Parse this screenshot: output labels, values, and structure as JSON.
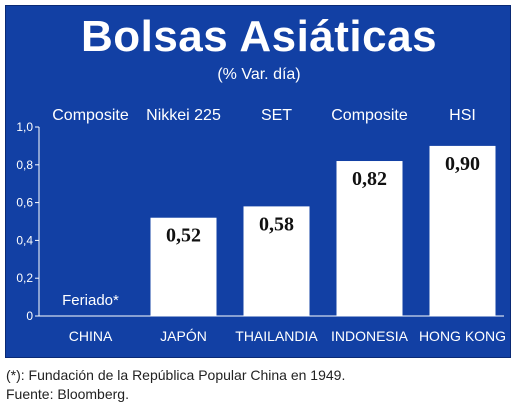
{
  "header": {
    "title": "Bolsas Asiáticas",
    "subtitle": "(% Var. día)"
  },
  "chart_data": {
    "type": "bar",
    "categories": [
      "CHINA",
      "JAPÓN",
      "THAILANDIA",
      "INDONESIA",
      "HONG KONG"
    ],
    "index_names": [
      "Composite",
      "Nikkei 225",
      "SET",
      "Composite",
      "HSI"
    ],
    "values": [
      null,
      0.52,
      0.58,
      0.82,
      0.9
    ],
    "value_labels": [
      "",
      "0,52",
      "0,58",
      "0,82",
      "0,90"
    ],
    "missing_label": "Feriado*",
    "ylim": [
      0,
      1.0
    ],
    "yticks": [
      0,
      0.2,
      0.4,
      0.6,
      0.8,
      1.0
    ],
    "ytick_labels": [
      "0",
      "0,2",
      "0,4",
      "0,6",
      "0,8",
      "1,0"
    ],
    "grid": false,
    "colors": {
      "background": "#1240a4",
      "bar": "#ffffff",
      "text": "#ffffff",
      "value_text": "#111111"
    }
  },
  "footer": {
    "note": "(*): Fundación de la República Popular China en 1949.",
    "source": "Fuente: Bloomberg."
  }
}
